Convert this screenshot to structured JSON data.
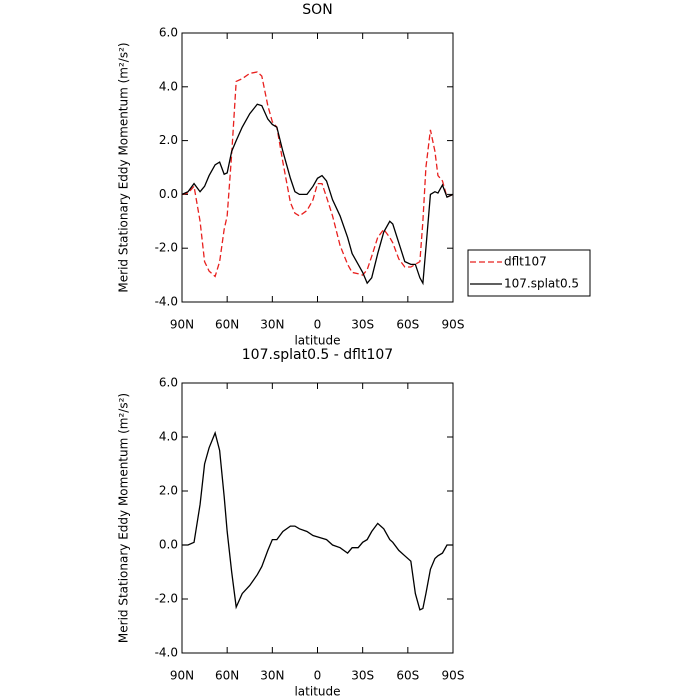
{
  "chart_data": [
    {
      "type": "line",
      "title": "SON",
      "xlabel": "latitude",
      "ylabel": "Merid Stationary Eddy Momentum (m²/s²)",
      "x": [
        90,
        86,
        82,
        78,
        75,
        72,
        68,
        65,
        62,
        60,
        57,
        54,
        50,
        45,
        40,
        37,
        33,
        30,
        27,
        23,
        18,
        15,
        12,
        7,
        3,
        0,
        -3,
        -6,
        -10,
        -15,
        -20,
        -23,
        -27,
        -30,
        -33,
        -36,
        -40,
        -44,
        -48,
        -50,
        -54,
        -58,
        -62,
        -65,
        -68,
        -70,
        -72,
        -75,
        -78,
        -80,
        -83,
        -86,
        -90
      ],
      "xlim": [
        90,
        -90
      ],
      "xticks": [
        {
          "value": 90,
          "label": "90N"
        },
        {
          "value": 60,
          "label": "60N"
        },
        {
          "value": 30,
          "label": "30N"
        },
        0,
        {
          "value": -30,
          "label": "30S"
        },
        {
          "value": -60,
          "label": "60S"
        },
        {
          "value": -90,
          "label": "90S"
        }
      ],
      "ylim": [
        -4,
        6
      ],
      "yticks": [
        {
          "value": 6,
          "label": "6.0"
        },
        {
          "value": 4,
          "label": "4.0"
        },
        {
          "value": 2,
          "label": "2.0"
        },
        {
          "value": 0,
          "label": "0.0"
        },
        {
          "value": -2,
          "label": "-2.0"
        },
        {
          "value": -4,
          "label": "-4.0"
        }
      ],
      "legend": "right",
      "series": [
        {
          "name": "dflt107",
          "color": "#e8201e",
          "dashed": true,
          "values": [
            0,
            0.05,
            0.3,
            -1.0,
            -2.5,
            -2.85,
            -3.05,
            -2.5,
            -1.3,
            -0.8,
            1.5,
            4.2,
            4.3,
            4.5,
            4.55,
            4.4,
            3.3,
            2.7,
            2.5,
            1.2,
            -0.3,
            -0.7,
            -0.8,
            -0.6,
            -0.2,
            0.4,
            0.4,
            -0.1,
            -0.8,
            -1.9,
            -2.6,
            -2.9,
            -2.95,
            -3.0,
            -2.8,
            -2.3,
            -1.6,
            -1.3,
            -1.6,
            -1.8,
            -2.4,
            -2.7,
            -2.7,
            -2.6,
            -2.5,
            -1.0,
            1.0,
            2.4,
            1.6,
            0.7,
            0.5,
            -0.1,
            0
          ]
        },
        {
          "name": "107.splat0.5",
          "color": "#000000",
          "dashed": false,
          "values": [
            0,
            0.1,
            0.4,
            0.1,
            0.3,
            0.7,
            1.1,
            1.2,
            0.75,
            0.8,
            1.6,
            2.0,
            2.5,
            3.0,
            3.35,
            3.3,
            2.8,
            2.6,
            2.5,
            1.6,
            0.6,
            0.1,
            0.0,
            0.0,
            0.3,
            0.6,
            0.7,
            0.5,
            -0.2,
            -0.8,
            -1.6,
            -2.2,
            -2.6,
            -2.9,
            -3.3,
            -3.1,
            -2.2,
            -1.4,
            -1.0,
            -1.1,
            -1.8,
            -2.5,
            -2.6,
            -2.6,
            -3.1,
            -3.3,
            -2.0,
            0.0,
            0.1,
            0.05,
            0.35,
            -0.1,
            0
          ]
        }
      ]
    },
    {
      "type": "line",
      "title": "107.splat0.5 - dflt107",
      "xlabel": "latitude",
      "ylabel": "Merid Stationary Eddy Momentum (m²/s²)",
      "x": [
        90,
        86,
        82,
        78,
        75,
        72,
        68,
        65,
        62,
        60,
        57,
        54,
        50,
        45,
        40,
        37,
        33,
        30,
        27,
        23,
        18,
        15,
        12,
        7,
        3,
        0,
        -3,
        -6,
        -10,
        -15,
        -20,
        -23,
        -27,
        -30,
        -33,
        -36,
        -40,
        -44,
        -48,
        -50,
        -54,
        -58,
        -62,
        -65,
        -68,
        -70,
        -72,
        -75,
        -78,
        -80,
        -83,
        -86,
        -90
      ],
      "xlim": [
        90,
        -90
      ],
      "xticks": [
        {
          "value": 90,
          "label": "90N"
        },
        {
          "value": 60,
          "label": "60N"
        },
        {
          "value": 30,
          "label": "30N"
        },
        0,
        {
          "value": -30,
          "label": "30S"
        },
        {
          "value": -60,
          "label": "60S"
        },
        {
          "value": -90,
          "label": "90S"
        }
      ],
      "ylim": [
        -4,
        6
      ],
      "yticks": [
        {
          "value": 6,
          "label": "6.0"
        },
        {
          "value": 4,
          "label": "4.0"
        },
        {
          "value": 2,
          "label": "2.0"
        },
        {
          "value": 0,
          "label": "0.0"
        },
        {
          "value": -2,
          "label": "-2.0"
        },
        {
          "value": -4,
          "label": "-4.0"
        }
      ],
      "series": [
        {
          "color": "#000000",
          "dashed": false,
          "values": [
            0,
            0,
            0.1,
            1.5,
            3.0,
            3.6,
            4.15,
            3.5,
            1.8,
            0.5,
            -1.0,
            -2.3,
            -1.8,
            -1.5,
            -1.1,
            -0.8,
            -0.2,
            0.2,
            0.2,
            0.5,
            0.7,
            0.7,
            0.6,
            0.5,
            0.35,
            0.3,
            0.25,
            0.2,
            0.0,
            -0.1,
            -0.3,
            -0.1,
            -0.1,
            0.1,
            0.2,
            0.5,
            0.8,
            0.6,
            0.2,
            0.1,
            -0.2,
            -0.4,
            -0.6,
            -1.8,
            -2.4,
            -2.35,
            -1.8,
            -0.9,
            -0.5,
            -0.4,
            -0.3,
            0.0,
            0
          ]
        }
      ]
    }
  ]
}
